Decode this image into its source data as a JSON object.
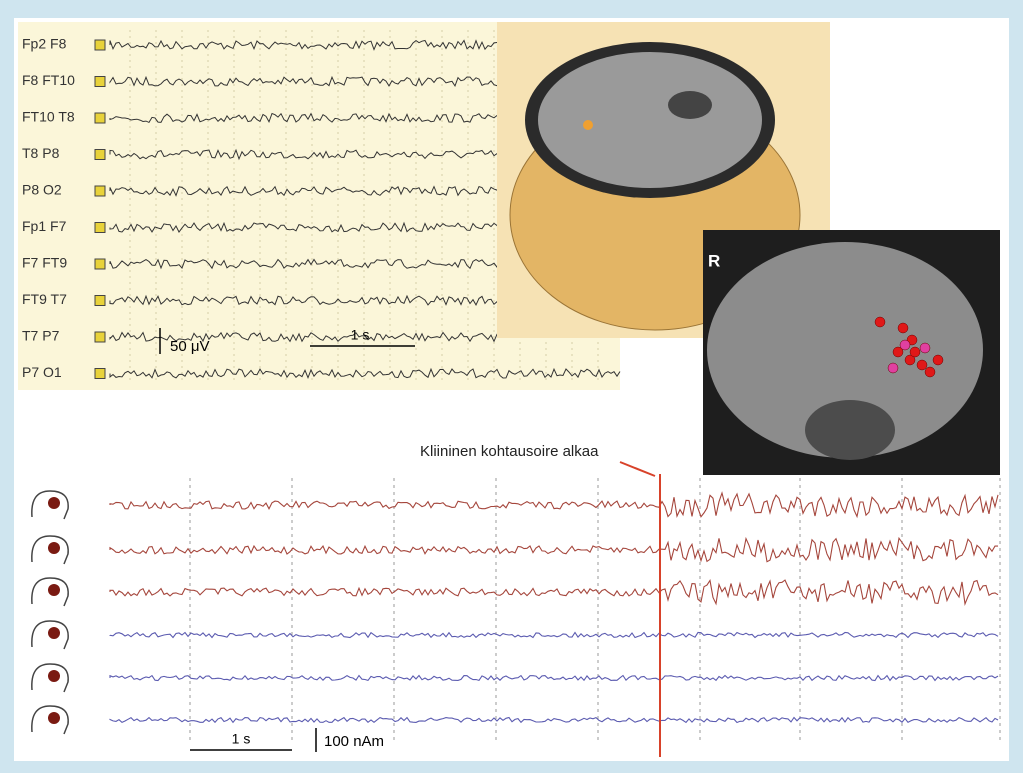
{
  "top_panel": {
    "channels": [
      "Fp2 F8",
      "F8 FT10",
      "FT10 T8",
      "T8 P8",
      "P8 O2",
      "Fp1 F7",
      "F7 FT9",
      "FT9 T7",
      "T7 P7",
      "P7 O1"
    ],
    "amplitude_scale": "50 μV",
    "time_scale": "1 s"
  },
  "mri_panel": {
    "label": "R"
  },
  "bottom_panel": {
    "annotation": "Kliininen kohtausoire alkaa",
    "time_scale": "1 s",
    "amplitude_scale": "100 nAm"
  }
}
